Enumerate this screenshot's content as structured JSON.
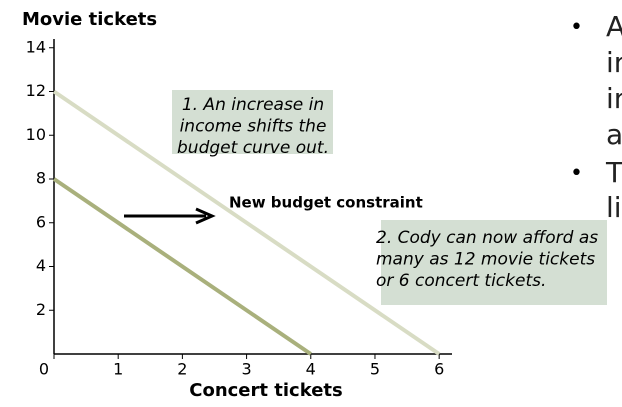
{
  "chart_data": {
    "type": "line",
    "y_label": "Movie tickets",
    "x_label": "Concert tickets",
    "xlim": [
      0,
      6.2
    ],
    "ylim": [
      0,
      14.4
    ],
    "xticks": [
      0,
      1,
      2,
      3,
      4,
      5,
      6
    ],
    "yticks": [
      2,
      4,
      6,
      8,
      10,
      12,
      14
    ],
    "series": [
      {
        "color": "#a9b07c",
        "x": [
          0,
          4
        ],
        "values": [
          8,
          0
        ]
      },
      {
        "name": "New budget constraint",
        "color": "#d8dcc4",
        "x": [
          0,
          6
        ],
        "values": [
          12,
          0
        ]
      }
    ],
    "annotations": [
      [
        "1. An increase in",
        "income shifts the",
        "budget curve out."
      ],
      [
        "2. Cody can now afford as",
        "many as 12 movie tickets",
        "or 6 concert tickets."
      ]
    ]
  },
  "bullets": [
    [
      "A",
      "in",
      "in",
      "a"
    ],
    [
      "T",
      "li"
    ]
  ]
}
